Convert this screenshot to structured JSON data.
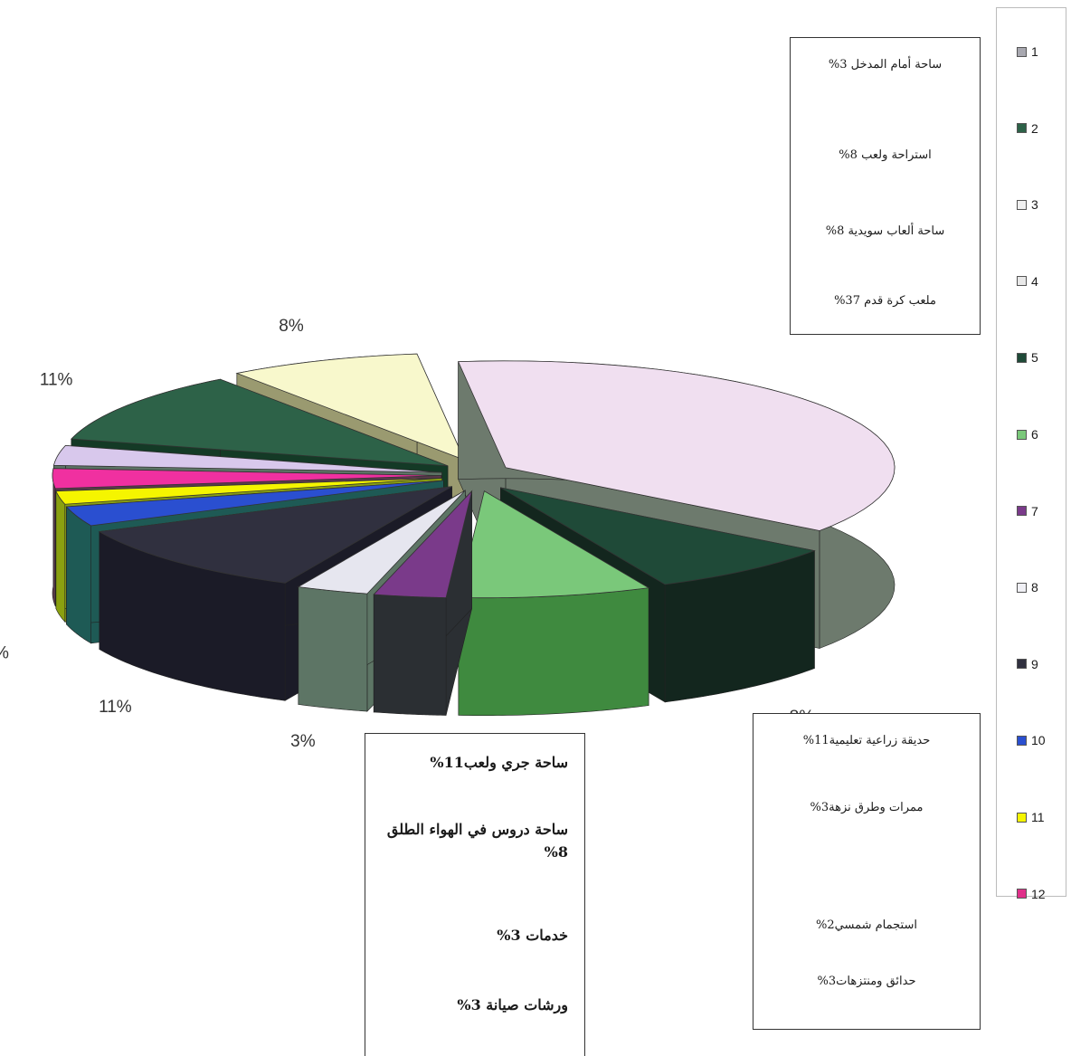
{
  "chart_data": {
    "type": "pie",
    "style": "3d-exploded",
    "slices": [
      {
        "label": "1",
        "value": 37,
        "data_label": "37%",
        "top_color": "#f0dff0",
        "side_color": "#6d7a6d"
      },
      {
        "label": "2",
        "value": 8,
        "data_label": "8%",
        "top_color": "#1f4a38",
        "side_color": "#13261e"
      },
      {
        "label": "3",
        "value": 8,
        "data_label": "8%",
        "top_color": "#7ac87a",
        "side_color": "#3f8a3f"
      },
      {
        "label": "4",
        "value": 3,
        "data_label": "3%",
        "top_color": "#7a3a8a",
        "side_color": "#2b2f33"
      },
      {
        "label": "5",
        "value": 3,
        "data_label": "3%",
        "top_color": "#e6e6ef",
        "side_color": "#5d7565"
      },
      {
        "label": "6",
        "value": 11,
        "data_label": "11%",
        "top_color": "#30303f",
        "side_color": "#1b1b27"
      },
      {
        "label": "7",
        "value": 3,
        "data_label": "3%",
        "top_color": "#2a4fd0",
        "side_color": "#1e5a55"
      },
      {
        "label": "8",
        "value": 2,
        "data_label": "2%",
        "top_color": "#f5f500",
        "side_color": "#8aa010"
      },
      {
        "label": "9",
        "value": 3,
        "data_label": "3%",
        "top_color": "#f030a0",
        "side_color": "#5a3a4a"
      },
      {
        "label": "10",
        "value": 3,
        "data_label": "3%",
        "top_color": "#d8c8ec",
        "side_color": "#5d7365"
      },
      {
        "label": "11",
        "value": 11,
        "data_label": "11%",
        "top_color": "#2d6248",
        "side_color": "#143a26"
      },
      {
        "label": "12",
        "value": 8,
        "data_label": "8%",
        "top_color": "#f8f8cc",
        "side_color": "#9a9a70"
      }
    ],
    "legend": {
      "placement": "right",
      "entries": [
        {
          "label": "1",
          "color": "#a8a8b0"
        },
        {
          "label": "2",
          "color": "#2d6248"
        },
        {
          "label": "3",
          "color": "#f0f0f0"
        },
        {
          "label": "4",
          "color": "#e8e8e8"
        },
        {
          "label": "5",
          "color": "#1f4a38"
        },
        {
          "label": "6",
          "color": "#7ac87a"
        },
        {
          "label": "7",
          "color": "#7a3a8a"
        },
        {
          "label": "8",
          "color": "#f0f0f5"
        },
        {
          "label": "9",
          "color": "#30303f"
        },
        {
          "label": "10",
          "color": "#2a4fd0"
        },
        {
          "label": "11",
          "color": "#f5f500"
        },
        {
          "label": "12",
          "color": "#e0308a"
        }
      ]
    },
    "annotations": {
      "box_top_right": [
        "ساحة أمام المدخل 3%",
        "استراحة ولعب 8%",
        "ساحة ألعاب سويدية 8%",
        "ملعب كرة قدم 37%"
      ],
      "box_bottom_center": [
        "ساحة جري ولعب11%",
        "ساحة دروس في الهواء الطلق 8%",
        "خدمات 3%",
        "ورشات صيانة 3%"
      ],
      "box_bottom_right": [
        "حديقة زراعية تعليمية11%",
        "ممرات وطرق نزهة3%",
        "استجمام شمسي2%",
        "حدائق ومنتزهات3%"
      ]
    }
  }
}
